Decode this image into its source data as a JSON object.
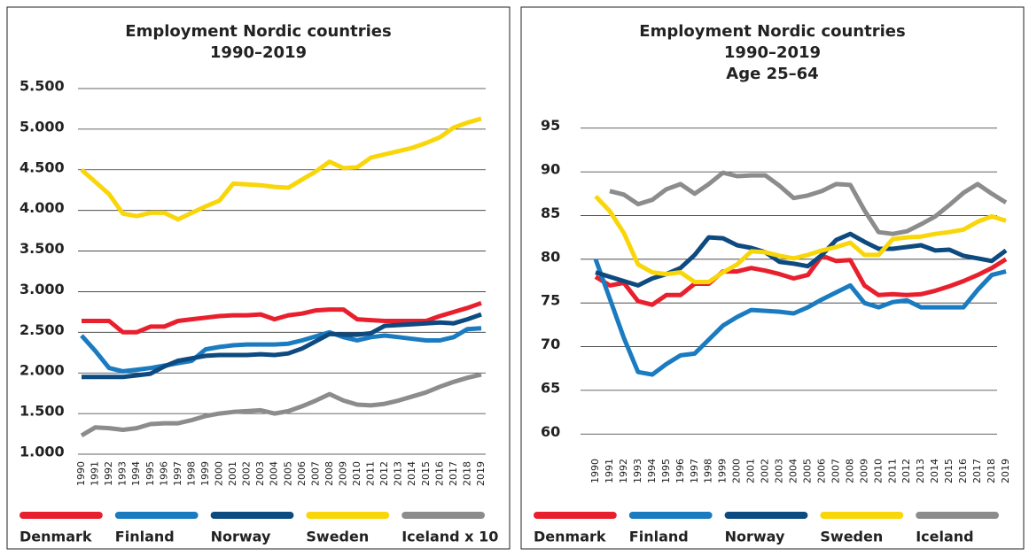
{
  "chart_data": [
    {
      "type": "line",
      "title": [
        "Employment Nordic countries",
        "1990–2019"
      ],
      "categories": [
        "1990",
        "1991",
        "1992",
        "1993",
        "1994",
        "1995",
        "1996",
        "1997",
        "1998",
        "1999",
        "2000",
        "2001",
        "2002",
        "2003",
        "2004",
        "2005",
        "2006",
        "2007",
        "2008",
        "2009",
        "2010",
        "2011",
        "2012",
        "2013",
        "2014",
        "2015",
        "2016",
        "2017",
        "2018",
        "2019"
      ],
      "ylim": [
        1000,
        5500
      ],
      "yticks": [
        {
          "value": 1000,
          "label": "1.000"
        },
        {
          "value": 1500,
          "label": "1.500"
        },
        {
          "value": 2000,
          "label": "2.000"
        },
        {
          "value": 2500,
          "label": "2.500"
        },
        {
          "value": 3000,
          "label": "3.000"
        },
        {
          "value": 3500,
          "label": "3.500"
        },
        {
          "value": 4000,
          "label": "4.000"
        },
        {
          "value": 4500,
          "label": "4.500"
        },
        {
          "value": 5000,
          "label": "5.000"
        },
        {
          "value": 5500,
          "label": "5.500"
        }
      ],
      "grid": true,
      "series": [
        {
          "name": "Denmark",
          "color": "#e8202e",
          "values": [
            2640,
            2640,
            2640,
            2500,
            2500,
            2570,
            2570,
            2640,
            2660,
            2680,
            2700,
            2710,
            2710,
            2720,
            2660,
            2710,
            2730,
            2770,
            2780,
            2780,
            2660,
            2650,
            2640,
            2640,
            2640,
            2640,
            2700,
            2750,
            2800,
            2860
          ]
        },
        {
          "name": "Finland",
          "color": "#1a7bc0",
          "values": [
            2460,
            2270,
            2060,
            2020,
            2040,
            2060,
            2090,
            2120,
            2150,
            2290,
            2320,
            2340,
            2350,
            2350,
            2350,
            2360,
            2400,
            2450,
            2500,
            2440,
            2400,
            2440,
            2460,
            2440,
            2420,
            2400,
            2400,
            2440,
            2540,
            2550
          ]
        },
        {
          "name": "Norway",
          "color": "#0d4a80",
          "values": [
            1950,
            1950,
            1950,
            1950,
            1970,
            1990,
            2080,
            2150,
            2180,
            2210,
            2220,
            2220,
            2220,
            2230,
            2220,
            2240,
            2300,
            2390,
            2480,
            2470,
            2470,
            2490,
            2580,
            2590,
            2600,
            2610,
            2620,
            2610,
            2660,
            2720
          ]
        },
        {
          "name": "Sweden",
          "color": "#f9d60a",
          "values": [
            4500,
            4350,
            4200,
            3960,
            3930,
            3970,
            3970,
            3890,
            3970,
            4050,
            4120,
            4330,
            4320,
            4310,
            4290,
            4280,
            4380,
            4480,
            4600,
            4520,
            4530,
            4650,
            4690,
            4730,
            4770,
            4830,
            4900,
            5020,
            5080,
            5130
          ]
        },
        {
          "name": "Iceland x 10",
          "color": "#8c8c8c",
          "values": [
            1230,
            1330,
            1320,
            1300,
            1320,
            1370,
            1380,
            1380,
            1420,
            1470,
            1500,
            1520,
            1530,
            1540,
            1500,
            1530,
            1590,
            1660,
            1740,
            1660,
            1610,
            1600,
            1620,
            1660,
            1710,
            1760,
            1830,
            1890,
            1940,
            1980
          ]
        }
      ]
    },
    {
      "type": "line",
      "title": [
        "Employment Nordic countries",
        "1990–2019",
        "Age 25–64"
      ],
      "categories": [
        "1990",
        "1991",
        "1992",
        "1993",
        "1994",
        "1995",
        "1996",
        "1997",
        "1998",
        "1999",
        "2000",
        "2001",
        "2002",
        "2003",
        "2004",
        "2005",
        "2006",
        "2007",
        "2008",
        "2009",
        "2010",
        "2011",
        "2012",
        "2013",
        "2014",
        "2015",
        "2016",
        "2017",
        "2018",
        "2019"
      ],
      "ylim": [
        58,
        97
      ],
      "yticks": [
        60,
        65,
        70,
        75,
        80,
        85,
        90,
        95
      ],
      "grid": true,
      "series": [
        {
          "name": "Denmark",
          "color": "#e8202e",
          "values": [
            78,
            77,
            77.3,
            75.2,
            74.8,
            75.9,
            75.9,
            77.2,
            77.2,
            78.6,
            78.6,
            79,
            78.7,
            78.3,
            77.8,
            78.2,
            80.4,
            79.8,
            79.9,
            77,
            75.9,
            76,
            75.9,
            76,
            76.4,
            76.9,
            77.5,
            78.2,
            79,
            80
          ]
        },
        {
          "name": "Finland",
          "color": "#1a7bc0",
          "values": [
            80,
            75.5,
            71,
            67.1,
            66.8,
            68,
            69,
            69.2,
            70.8,
            72.4,
            73.4,
            74.2,
            74.1,
            74,
            73.8,
            74.5,
            75.4,
            76.2,
            77,
            75,
            74.5,
            75.1,
            75.3,
            74.5,
            74.5,
            74.5,
            74.5,
            76.5,
            78.2,
            78.6
          ]
        },
        {
          "name": "Norway",
          "color": "#0d4a80",
          "values": [
            78.5,
            78,
            77.5,
            77,
            77.8,
            78.3,
            79,
            80.5,
            82.5,
            82.4,
            81.6,
            81.3,
            80.8,
            79.7,
            79.5,
            79.2,
            80.5,
            82.2,
            82.9,
            82,
            81.2,
            81.2,
            81.4,
            81.6,
            81,
            81.1,
            80.4,
            80.1,
            79.8,
            81
          ]
        },
        {
          "name": "Sweden",
          "color": "#f9d60a",
          "values": [
            87.2,
            85.5,
            83,
            79.4,
            78.5,
            78.3,
            78.5,
            77.4,
            77.4,
            78.5,
            79.4,
            80.9,
            80.8,
            80.4,
            80.1,
            80.5,
            81,
            81.4,
            81.9,
            80.5,
            80.5,
            82.3,
            82.5,
            82.6,
            82.9,
            83.1,
            83.4,
            84.3,
            84.9,
            84.4
          ]
        },
        {
          "name": "Iceland",
          "color": "#8c8c8c",
          "values": [
            null,
            87.8,
            87.4,
            86.3,
            86.8,
            88,
            88.6,
            87.5,
            88.6,
            89.9,
            89.5,
            89.6,
            89.6,
            88.4,
            87,
            87.3,
            87.8,
            88.6,
            88.5,
            85.6,
            83.1,
            82.9,
            83.2,
            84,
            84.9,
            86.2,
            87.6,
            88.6,
            87.5,
            86.5
          ]
        }
      ]
    }
  ]
}
